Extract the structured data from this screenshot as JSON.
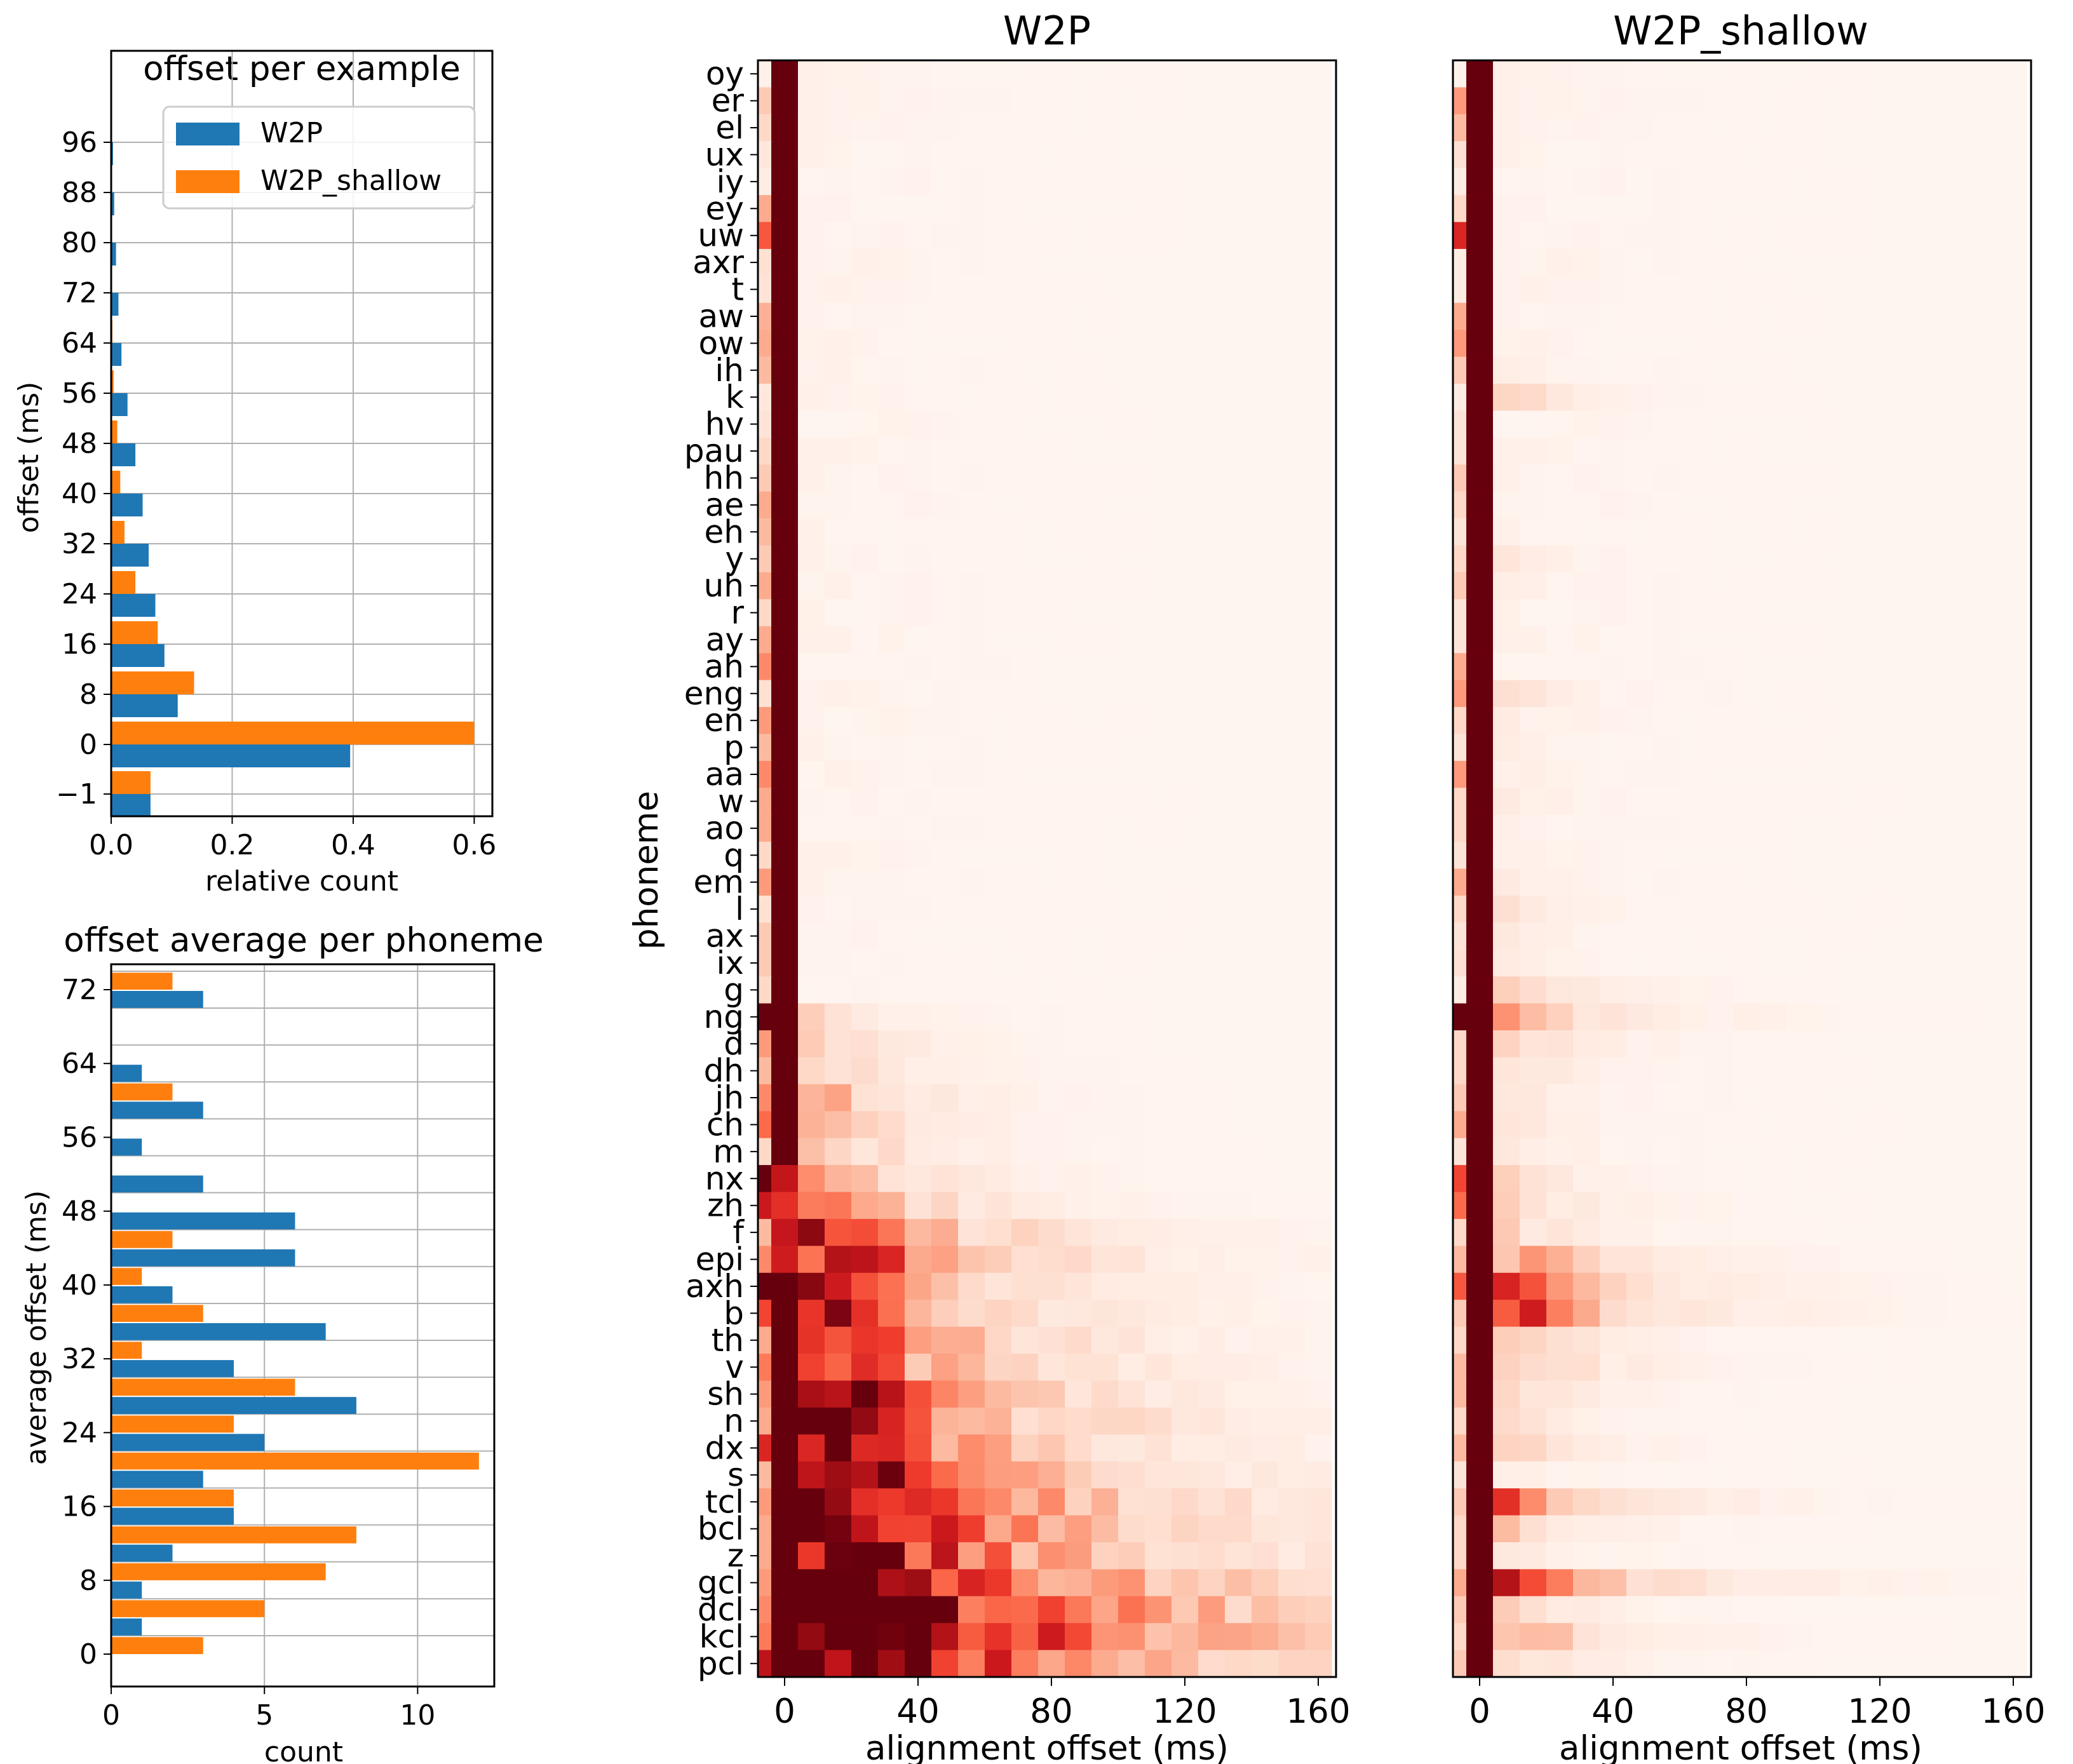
{
  "colors": {
    "w2p": "#1f77b4",
    "w2p_shallow": "#ff7f0e",
    "grid": "#b0b0b0",
    "heat_low": "#fff5f0",
    "heat_high": "#67000d"
  },
  "chart_data": [
    {
      "id": "offset-per-example",
      "type": "bar",
      "orientation": "horizontal",
      "title": "offset per example",
      "xlabel": "relative count",
      "ylabel": "offset (ms)",
      "xlim": [
        0,
        0.63
      ],
      "xticks": [
        "0.0",
        "0.2",
        "0.4",
        "0.6"
      ],
      "categories": [
        "-1",
        "0",
        "8",
        "16",
        "24",
        "32",
        "40",
        "48",
        "56",
        "64",
        "72",
        "80",
        "88",
        "96"
      ],
      "ytick_labels": [
        "−1",
        "0",
        "8",
        "16",
        "24",
        "32",
        "40",
        "48",
        "56",
        "64",
        "72",
        "80",
        "88",
        "96"
      ],
      "series": [
        {
          "name": "W2P",
          "values": [
            0.065,
            0.395,
            0.11,
            0.088,
            0.073,
            0.062,
            0.052,
            0.04,
            0.027,
            0.017,
            0.012,
            0.008,
            0.005,
            0.003
          ]
        },
        {
          "name": "W2P_shallow",
          "values": [
            0.065,
            0.6,
            0.137,
            0.077,
            0.04,
            0.022,
            0.015,
            0.01,
            0.004,
            0.002,
            0.001,
            0.0,
            0.0,
            0.0
          ]
        }
      ],
      "legend": "top-right",
      "grid": true
    },
    {
      "id": "offset-average-per-phoneme",
      "type": "bar",
      "orientation": "horizontal",
      "title": "offset average per phoneme",
      "xlabel": "count",
      "ylabel": "average offset (ms)",
      "xlim": [
        0,
        12.5
      ],
      "xticks": [
        "0",
        "5",
        "10"
      ],
      "ytick_labels": [
        "0",
        "8",
        "16",
        "24",
        "32",
        "40",
        "48",
        "56",
        "64",
        "72"
      ],
      "bin_width": 4,
      "bin_starts": [
        0,
        4,
        8,
        12,
        16,
        20,
        24,
        28,
        32,
        36,
        40,
        44,
        48,
        52,
        56,
        60,
        64,
        68,
        72
      ],
      "series": [
        {
          "name": "W2P",
          "values": [
            1,
            1,
            2,
            4,
            3,
            5,
            8,
            4,
            7,
            2,
            6,
            6,
            3,
            1,
            3,
            1,
            0,
            3,
            0
          ]
        },
        {
          "name": "W2P_shallow",
          "values": [
            3,
            5,
            7,
            8,
            4,
            12,
            4,
            6,
            1,
            3,
            1,
            2,
            0,
            0,
            0,
            2,
            0,
            0,
            2
          ]
        }
      ],
      "grid": true
    },
    {
      "id": "heatmap-w2p",
      "type": "heatmap",
      "title": "W2P",
      "xlabel": "alignment offset (ms)",
      "ylabel": "phoneme",
      "xticks": [
        "0",
        "40",
        "80",
        "120",
        "160"
      ],
      "x_values": [
        -8,
        0,
        8,
        16,
        24,
        32,
        40,
        48,
        56,
        64,
        72,
        80,
        88,
        96,
        104,
        112,
        120,
        128,
        136,
        144,
        152,
        160
      ],
      "colorscale": "Reds",
      "phonemes": [
        "oy",
        "er",
        "el",
        "ux",
        "iy",
        "ey",
        "uw",
        "axr",
        "t",
        "aw",
        "ow",
        "ih",
        "k",
        "hv",
        "pau",
        "hh",
        "ae",
        "eh",
        "y",
        "uh",
        "r",
        "ay",
        "ah",
        "eng",
        "en",
        "p",
        "aa",
        "w",
        "ao",
        "q",
        "em",
        "l",
        "ax",
        "ix",
        "g",
        "ng",
        "d",
        "dh",
        "jh",
        "ch",
        "m",
        "nx",
        "zh",
        "f",
        "epi",
        "axh",
        "b",
        "th",
        "v",
        "sh",
        "n",
        "dx",
        "s",
        "tcl",
        "bcl",
        "z",
        "gcl",
        "dcl",
        "kcl",
        "pcl"
      ],
      "peak_profile": [
        0,
        0,
        0,
        0,
        0,
        0,
        0,
        0,
        0,
        0,
        0,
        0,
        0,
        0,
        0,
        0,
        0,
        0,
        0,
        0,
        0,
        0,
        0,
        0,
        0,
        0,
        0,
        0,
        0,
        0,
        0,
        0,
        0,
        0,
        0,
        0.55,
        0.7,
        0.75,
        0.9,
        0.85,
        0.8,
        1.0,
        1.2,
        1.6,
        1.8,
        1.6,
        1.7,
        1.8,
        1.8,
        2.0,
        2.1,
        2.0,
        2.2,
        2.5,
        2.5,
        2.6,
        2.9,
        3.3,
        3.4,
        3.0
      ],
      "left_cell": [
        0.03,
        0.2,
        0.15,
        0.08,
        0.05,
        0.3,
        0.55,
        0.12,
        0.1,
        0.28,
        0.3,
        0.25,
        0.08,
        0.1,
        0.15,
        0.2,
        0.3,
        0.25,
        0.2,
        0.3,
        0.15,
        0.3,
        0.4,
        0.12,
        0.35,
        0.25,
        0.4,
        0.3,
        0.3,
        0.15,
        0.35,
        0.12,
        0.2,
        0.2,
        0.15,
        1.0,
        0.35,
        0.25,
        0.4,
        0.5,
        0.15,
        1.0,
        0.75,
        0.25,
        0.4,
        1.0,
        0.6,
        0.3,
        0.45,
        0.35,
        0.3,
        0.7,
        0.25,
        0.35,
        0.3,
        0.3,
        0.35,
        0.4,
        0.45,
        0.8
      ]
    },
    {
      "id": "heatmap-w2p-shallow",
      "type": "heatmap",
      "title": "W2P_shallow",
      "xlabel": "alignment offset (ms)",
      "xticks": [
        "0",
        "40",
        "80",
        "120",
        "160"
      ],
      "x_values": [
        -8,
        0,
        8,
        16,
        24,
        32,
        40,
        48,
        56,
        64,
        72,
        80,
        88,
        96,
        104,
        112,
        120,
        128,
        136,
        144,
        152,
        160
      ],
      "colorscale": "Reds",
      "peak_profile": [
        0,
        0,
        0,
        0,
        0,
        0,
        0,
        0,
        0,
        0,
        0,
        0.1,
        0.5,
        0,
        0,
        0,
        0,
        0,
        0.25,
        0.1,
        0,
        0,
        0,
        0.35,
        0.2,
        0.15,
        0.15,
        0.2,
        0.15,
        0,
        0.2,
        0.3,
        0.25,
        0.2,
        0.6,
        1.0,
        0.6,
        0.5,
        0.3,
        0.35,
        0.3,
        0.5,
        0.6,
        0.5,
        1.0,
        1.2,
        1.3,
        0.7,
        0.8,
        0.5,
        0.4,
        0.6,
        0.15,
        1.1,
        0.55,
        0.3,
        1.4,
        0.5,
        0.9,
        0.55
      ],
      "left_cell": [
        0.02,
        0.35,
        0.25,
        0.12,
        0.05,
        0.15,
        0.7,
        0.05,
        0.05,
        0.3,
        0.35,
        0.2,
        0.05,
        0.1,
        0.1,
        0.2,
        0.15,
        0.1,
        0.15,
        0.2,
        0.1,
        0.1,
        0.3,
        0.35,
        0.15,
        0.1,
        0.35,
        0.15,
        0.15,
        0.1,
        0.3,
        0.15,
        0.1,
        0.12,
        0.05,
        1.0,
        0.15,
        0.15,
        0.2,
        0.3,
        0.1,
        0.6,
        0.5,
        0.15,
        0.25,
        0.55,
        0.2,
        0.15,
        0.25,
        0.25,
        0.15,
        0.25,
        0.1,
        0.2,
        0.15,
        0.15,
        0.3,
        0.2,
        0.15,
        0.2
      ]
    }
  ]
}
